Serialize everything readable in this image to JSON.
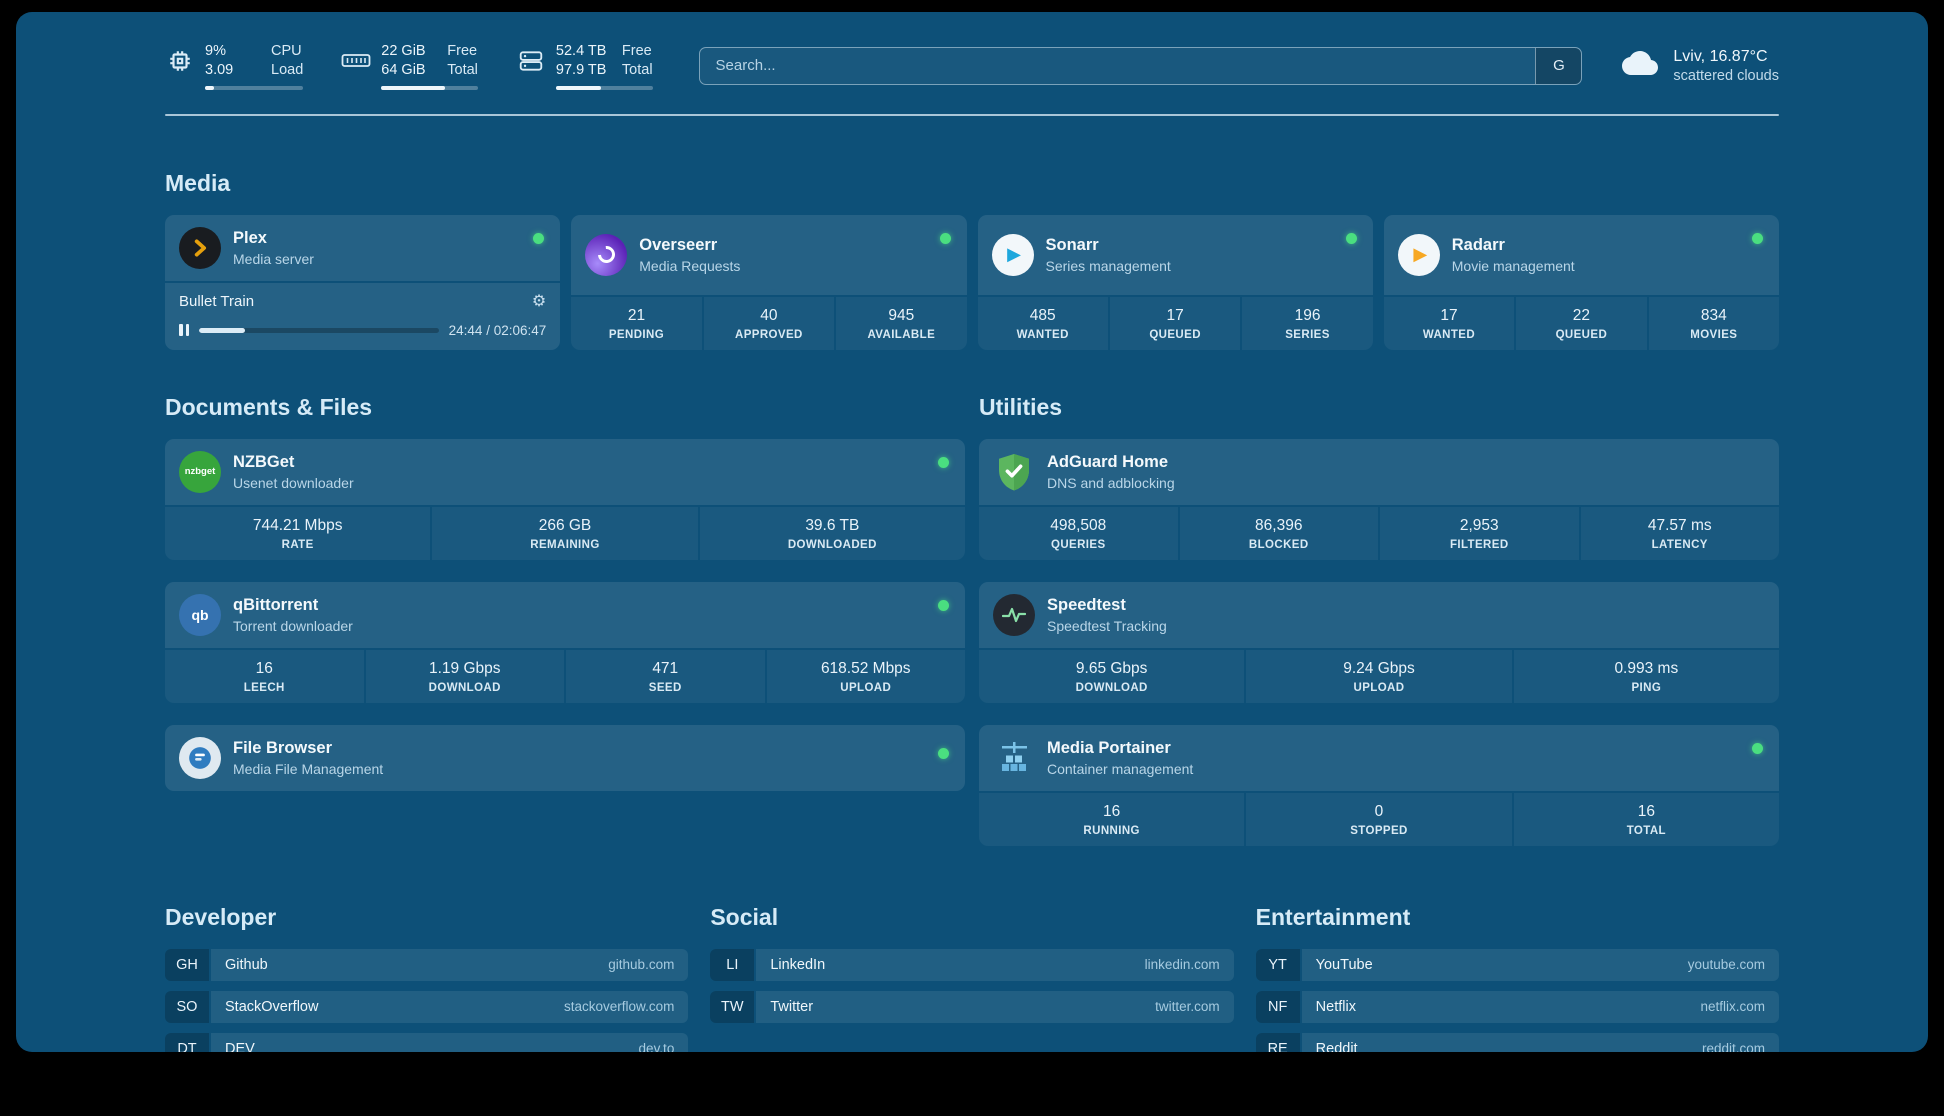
{
  "header": {
    "cpu": {
      "value": "9%",
      "sub": "3.09",
      "label_top": "CPU",
      "label_bottom": "Load",
      "percent": 9
    },
    "memory": {
      "value": "22 GiB",
      "sub": "64 GiB",
      "label_top": "Free",
      "label_bottom": "Total",
      "percent": 66
    },
    "disk": {
      "value": "52.4 TB",
      "sub": "97.9 TB",
      "label_top": "Free",
      "label_bottom": "Total",
      "percent": 47
    },
    "search": {
      "placeholder": "Search...",
      "button": "G"
    },
    "weather": {
      "location": "Lviv, 16.87°C",
      "condition": "scattered clouds"
    }
  },
  "media": {
    "title": "Media",
    "plex": {
      "name": "Plex",
      "sub": "Media server",
      "now_playing": "Bullet Train",
      "time": "24:44 / 02:06:47",
      "progress_percent": 19
    },
    "overseerr": {
      "name": "Overseerr",
      "sub": "Media Requests",
      "stats": [
        {
          "value": "21",
          "label": "PENDING"
        },
        {
          "value": "40",
          "label": "APPROVED"
        },
        {
          "value": "945",
          "label": "AVAILABLE"
        }
      ]
    },
    "sonarr": {
      "name": "Sonarr",
      "sub": "Series management",
      "stats": [
        {
          "value": "485",
          "label": "WANTED"
        },
        {
          "value": "17",
          "label": "QUEUED"
        },
        {
          "value": "196",
          "label": "SERIES"
        }
      ]
    },
    "radarr": {
      "name": "Radarr",
      "sub": "Movie management",
      "stats": [
        {
          "value": "17",
          "label": "WANTED"
        },
        {
          "value": "22",
          "label": "QUEUED"
        },
        {
          "value": "834",
          "label": "MOVIES"
        }
      ]
    }
  },
  "documents": {
    "title": "Documents & Files",
    "nzbget": {
      "name": "NZBGet",
      "sub": "Usenet downloader",
      "stats": [
        {
          "value": "744.21 Mbps",
          "label": "RATE"
        },
        {
          "value": "266 GB",
          "label": "REMAINING"
        },
        {
          "value": "39.6 TB",
          "label": "DOWNLOADED"
        }
      ]
    },
    "qbittorrent": {
      "name": "qBittorrent",
      "sub": "Torrent downloader",
      "stats": [
        {
          "value": "16",
          "label": "LEECH"
        },
        {
          "value": "1.19 Gbps",
          "label": "DOWNLOAD"
        },
        {
          "value": "471",
          "label": "SEED"
        },
        {
          "value": "618.52 Mbps",
          "label": "UPLOAD"
        }
      ]
    },
    "filebrowser": {
      "name": "File Browser",
      "sub": "Media File Management"
    }
  },
  "utilities": {
    "title": "Utilities",
    "adguard": {
      "name": "AdGuard Home",
      "sub": "DNS and adblocking",
      "stats": [
        {
          "value": "498,508",
          "label": "QUERIES"
        },
        {
          "value": "86,396",
          "label": "BLOCKED"
        },
        {
          "value": "2,953",
          "label": "FILTERED"
        },
        {
          "value": "47.57 ms",
          "label": "LATENCY"
        }
      ]
    },
    "speedtest": {
      "name": "Speedtest",
      "sub": "Speedtest Tracking",
      "stats": [
        {
          "value": "9.65 Gbps",
          "label": "DOWNLOAD"
        },
        {
          "value": "9.24 Gbps",
          "label": "UPLOAD"
        },
        {
          "value": "0.993 ms",
          "label": "PING"
        }
      ]
    },
    "portainer": {
      "name": "Media Portainer",
      "sub": "Container management",
      "stats": [
        {
          "value": "16",
          "label": "RUNNING"
        },
        {
          "value": "0",
          "label": "STOPPED"
        },
        {
          "value": "16",
          "label": "TOTAL"
        }
      ]
    }
  },
  "bookmarks": [
    {
      "title": "Developer",
      "links": [
        {
          "abbr": "GH",
          "name": "Github",
          "url": "github.com"
        },
        {
          "abbr": "SO",
          "name": "StackOverflow",
          "url": "stackoverflow.com"
        },
        {
          "abbr": "DT",
          "name": "DEV",
          "url": "dev.to"
        }
      ]
    },
    {
      "title": "Social",
      "links": [
        {
          "abbr": "LI",
          "name": "LinkedIn",
          "url": "linkedin.com"
        },
        {
          "abbr": "TW",
          "name": "Twitter",
          "url": "twitter.com"
        }
      ]
    },
    {
      "title": "Entertainment",
      "links": [
        {
          "abbr": "YT",
          "name": "YouTube",
          "url": "youtube.com"
        },
        {
          "abbr": "NF",
          "name": "Netflix",
          "url": "netflix.com"
        },
        {
          "abbr": "RE",
          "name": "Reddit",
          "url": "reddit.com"
        }
      ]
    }
  ]
}
